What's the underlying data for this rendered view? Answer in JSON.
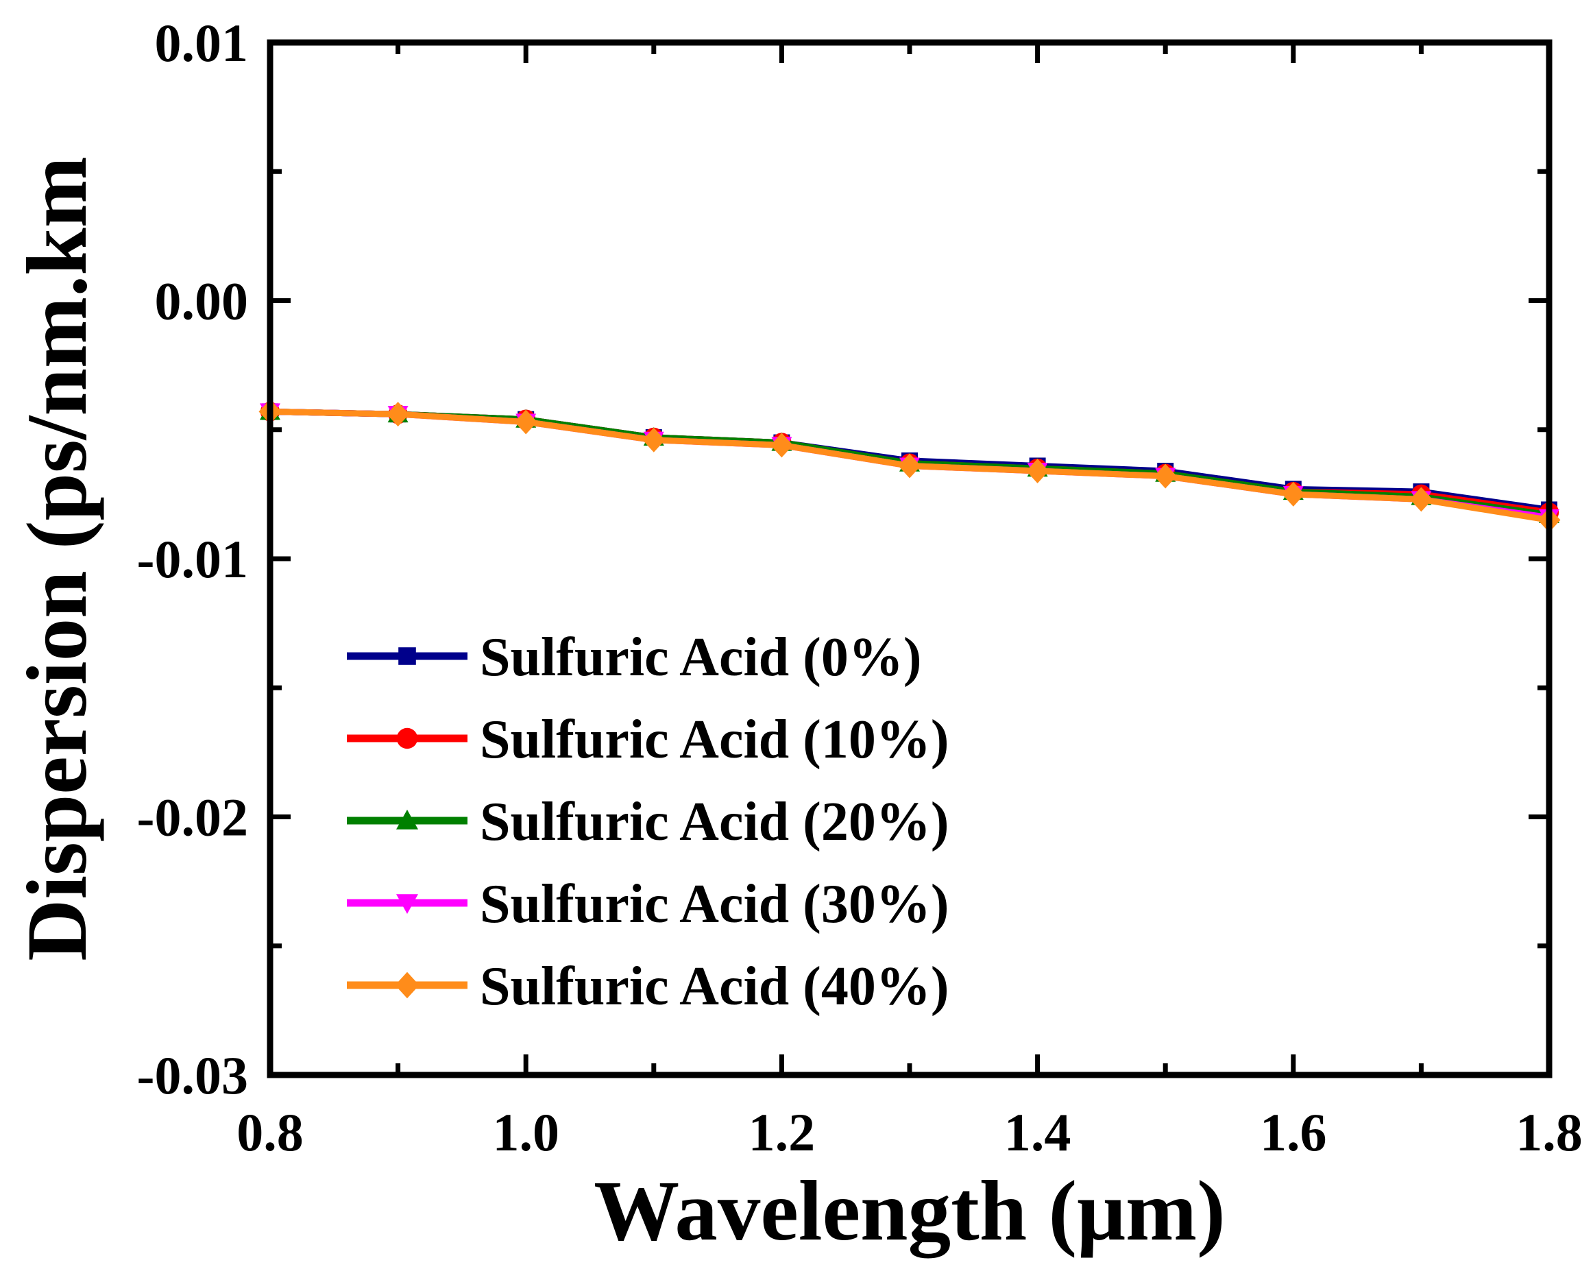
{
  "chart_data": {
    "type": "line",
    "title": "",
    "xlabel": "Wavelength (μm)",
    "ylabel": "Dispersion (ps/nm.km",
    "xlim": [
      0.8,
      1.8
    ],
    "ylim": [
      -0.03,
      0.01
    ],
    "x": [
      0.8,
      0.9,
      1.0,
      1.1,
      1.2,
      1.3,
      1.4,
      1.5,
      1.6,
      1.7,
      1.8
    ],
    "x_ticks": [
      0.8,
      1.0,
      1.2,
      1.4,
      1.6,
      1.8
    ],
    "x_tick_labels": [
      "0.8",
      "1.0",
      "1.2",
      "1.4",
      "1.6",
      "1.8"
    ],
    "y_ticks": [
      0.01,
      0.0,
      -0.01,
      -0.02,
      -0.03
    ],
    "y_tick_labels": [
      "0.01",
      "0.00",
      "-0.01",
      "-0.02",
      "-0.03"
    ],
    "legend_position": "lower-left",
    "series": [
      {
        "name": "Sulfuric Acid (0%)",
        "color": "#00008B",
        "marker": "square",
        "values": [
          -0.0043,
          -0.0044,
          -0.0046,
          -0.0053,
          -0.0055,
          -0.0062,
          -0.0064,
          -0.0066,
          -0.0073,
          -0.0074,
          -0.0081
        ]
      },
      {
        "name": "Sulfuric Acid (10%)",
        "color": "#FF0000",
        "marker": "circle",
        "values": [
          -0.0043,
          -0.0044,
          -0.0046,
          -0.0053,
          -0.0055,
          -0.0063,
          -0.0065,
          -0.0067,
          -0.0074,
          -0.0075,
          -0.0082
        ]
      },
      {
        "name": "Sulfuric Acid (20%)",
        "color": "#008000",
        "marker": "triangle-up",
        "values": [
          -0.0043,
          -0.0044,
          -0.0046,
          -0.0053,
          -0.0055,
          -0.0063,
          -0.0065,
          -0.0067,
          -0.0074,
          -0.0076,
          -0.0083
        ]
      },
      {
        "name": "Sulfuric Acid (30%)",
        "color": "#FF00FF",
        "marker": "triangle-down",
        "values": [
          -0.0043,
          -0.0044,
          -0.0047,
          -0.0054,
          -0.0056,
          -0.0064,
          -0.0066,
          -0.0068,
          -0.0075,
          -0.0077,
          -0.0084
        ]
      },
      {
        "name": "Sulfuric Acid (40%)",
        "color": "#FF8C1A",
        "marker": "diamond",
        "values": [
          -0.0043,
          -0.0044,
          -0.0047,
          -0.0054,
          -0.0056,
          -0.0064,
          -0.0066,
          -0.0068,
          -0.0075,
          -0.0077,
          -0.0085
        ]
      }
    ]
  }
}
